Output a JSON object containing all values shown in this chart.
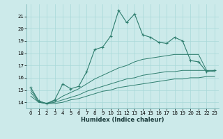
{
  "xlabel": "Humidex (Indice chaleur)",
  "x_values": [
    0,
    1,
    2,
    3,
    4,
    5,
    6,
    7,
    8,
    9,
    10,
    11,
    12,
    13,
    14,
    15,
    16,
    17,
    18,
    19,
    20,
    21,
    22,
    23
  ],
  "line1_y": [
    15.2,
    14.1,
    13.9,
    14.2,
    15.5,
    15.1,
    15.3,
    16.5,
    18.3,
    18.5,
    19.4,
    21.5,
    20.5,
    21.2,
    19.5,
    19.3,
    18.9,
    18.8,
    19.3,
    19.0,
    17.4,
    17.3,
    16.5,
    16.6
  ],
  "line2_y": [
    15.0,
    14.1,
    13.9,
    14.1,
    14.5,
    14.8,
    15.1,
    15.5,
    15.9,
    16.2,
    16.5,
    16.8,
    17.0,
    17.3,
    17.5,
    17.6,
    17.7,
    17.8,
    17.9,
    17.9,
    17.9,
    17.9,
    16.6,
    16.5
  ],
  "line3_y": [
    14.8,
    14.0,
    13.9,
    14.0,
    14.2,
    14.4,
    14.6,
    14.9,
    15.1,
    15.3,
    15.5,
    15.7,
    15.9,
    16.0,
    16.2,
    16.3,
    16.4,
    16.5,
    16.5,
    16.6,
    16.6,
    16.6,
    16.6,
    16.6
  ],
  "line4_y": [
    14.5,
    14.0,
    13.9,
    13.9,
    14.0,
    14.2,
    14.3,
    14.5,
    14.7,
    14.9,
    15.0,
    15.2,
    15.3,
    15.4,
    15.5,
    15.6,
    15.7,
    15.8,
    15.9,
    15.9,
    16.0,
    16.0,
    16.1,
    16.1
  ],
  "line_color": "#2e7d6e",
  "bg_color": "#cceaea",
  "grid_color": "#a8d8d8",
  "ylim": [
    13.5,
    22.0
  ],
  "xlim": [
    -0.5,
    23.5
  ],
  "yticks": [
    14,
    15,
    16,
    17,
    18,
    19,
    20,
    21
  ],
  "xticks": [
    0,
    1,
    2,
    3,
    4,
    5,
    6,
    7,
    8,
    9,
    10,
    11,
    12,
    13,
    14,
    15,
    16,
    17,
    18,
    19,
    20,
    21,
    22,
    23
  ]
}
